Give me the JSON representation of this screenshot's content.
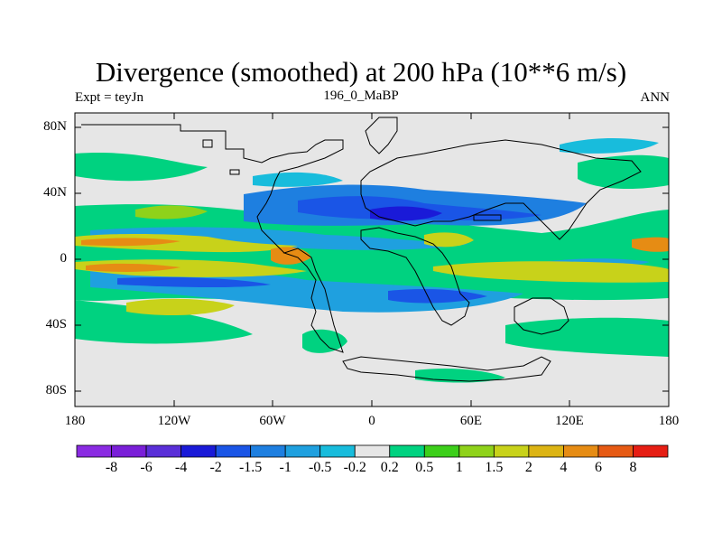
{
  "title": "Divergence (smoothed) at 200 hPa (10**6 m/s)",
  "left_label": "Expt = teyJn",
  "center_label": "196_0_MaBP",
  "right_label": "ANN",
  "lat_labels": [
    "80N",
    "40N",
    "0",
    "40S",
    "80S"
  ],
  "lon_labels": [
    "180",
    "120W",
    "60W",
    "0",
    "60E",
    "120E",
    "180"
  ],
  "colorbar_labels": [
    "-8",
    "-6",
    "-4",
    "-2",
    "-1.5",
    "-1",
    "-0.5",
    "-0.2",
    "0.2",
    "0.5",
    "1",
    "1.5",
    "2",
    "4",
    "6",
    "8"
  ],
  "colors": {
    "background_field": "#e6e6e6",
    "colorbar": [
      "#8a2be2",
      "#7a1fd8",
      "#5a2fd8",
      "#1a1ad8",
      "#1a55e6",
      "#1e7fe0",
      "#1fa0df",
      "#18bcdc",
      "#e6e6e6",
      "#00d280",
      "#3ccf1a",
      "#8fd21a",
      "#c8d21a",
      "#dcb414",
      "#e68c14",
      "#e65a14",
      "#e61e14"
    ]
  }
}
